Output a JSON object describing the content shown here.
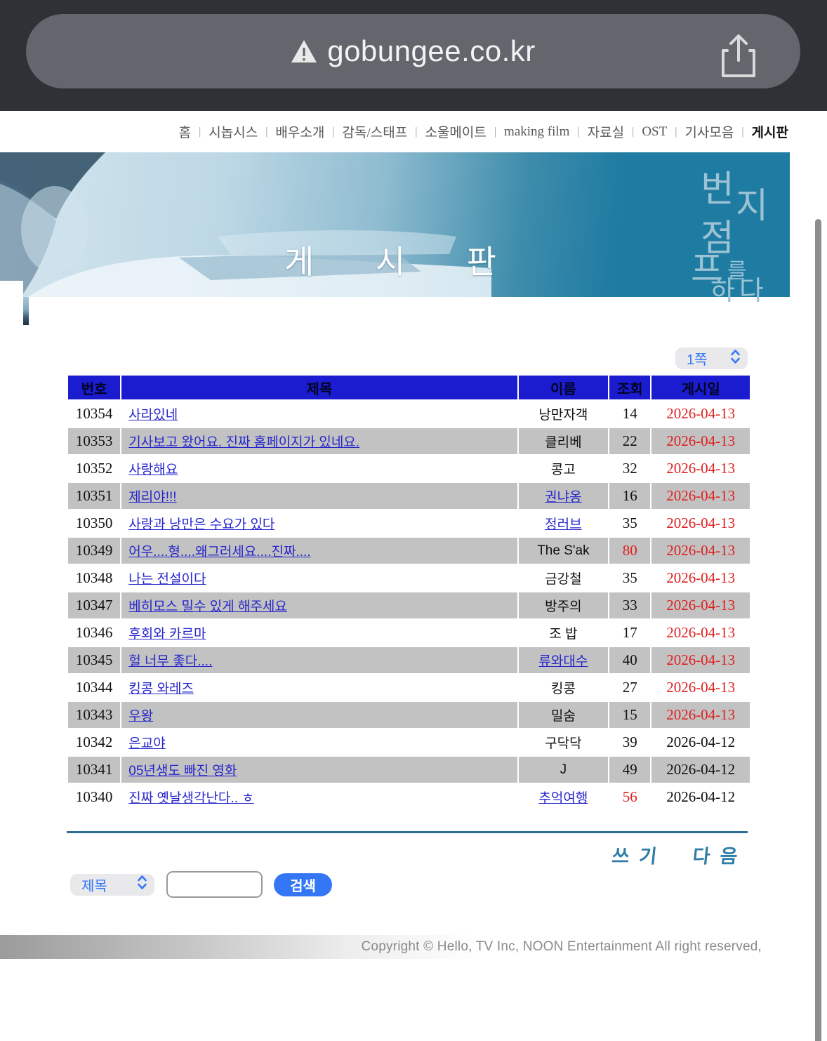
{
  "browser": {
    "url": "gobungee.co.kr",
    "warning_icon": "ssl-warning-triangle",
    "share_icon": "ios-share"
  },
  "nav": {
    "separator": "|",
    "items": [
      "홈",
      "시놉시스",
      "배우소개",
      "감독/스태프",
      "소울메이트",
      "making film",
      "자료실",
      "OST",
      "기사모음",
      "게시판"
    ],
    "active": "게시판"
  },
  "banner": {
    "title": "게 시 판",
    "logo_chars": [
      "번",
      "지",
      "점",
      "프",
      "를",
      "하다"
    ],
    "teal_color": "#1e7ba2"
  },
  "page_select": {
    "value": "1쪽"
  },
  "board": {
    "columns": [
      "번호",
      "제목",
      "이름",
      "조회",
      "게시일"
    ],
    "header_color": "#1b1bd0",
    "alt_row_color": "#c2c2c2",
    "link_color": "#2626cc",
    "highlight_color": "#e01f1f",
    "rows": [
      {
        "no": "10354",
        "title": "사라있네",
        "name": "낭만자객",
        "name_link": false,
        "views": "14",
        "views_red": false,
        "date": "2026-04-13",
        "date_red": true
      },
      {
        "no": "10353",
        "title": "기사보고 왔어요. 진짜 홈페이지가 있네요.",
        "name": "클리베",
        "name_link": false,
        "views": "22",
        "views_red": false,
        "date": "2026-04-13",
        "date_red": true
      },
      {
        "no": "10352",
        "title": "사랑해요",
        "name": "콩고",
        "name_link": false,
        "views": "32",
        "views_red": false,
        "date": "2026-04-13",
        "date_red": true
      },
      {
        "no": "10351",
        "title": "제리야!!!",
        "name": "권냐옹",
        "name_link": true,
        "views": "16",
        "views_red": false,
        "date": "2026-04-13",
        "date_red": true
      },
      {
        "no": "10350",
        "title": "사랑과 낭만은 수요가 있다",
        "name": "정러브",
        "name_link": true,
        "views": "35",
        "views_red": false,
        "date": "2026-04-13",
        "date_red": true
      },
      {
        "no": "10349",
        "title": "어우....형....왜그러세요....진짜....",
        "name": "The S'ak",
        "name_link": false,
        "views": "80",
        "views_red": true,
        "date": "2026-04-13",
        "date_red": true
      },
      {
        "no": "10348",
        "title": "나는 전설이다",
        "name": "금강철",
        "name_link": false,
        "views": "35",
        "views_red": false,
        "date": "2026-04-13",
        "date_red": true
      },
      {
        "no": "10347",
        "title": "베히모스 밀수 있게 해주세요",
        "name": "방주의",
        "name_link": false,
        "views": "33",
        "views_red": false,
        "date": "2026-04-13",
        "date_red": true
      },
      {
        "no": "10346",
        "title": "후회와 카르마",
        "name": "조 밥",
        "name_link": false,
        "views": "17",
        "views_red": false,
        "date": "2026-04-13",
        "date_red": true
      },
      {
        "no": "10345",
        "title": "헐 너무 좋다....",
        "name": "류와대수",
        "name_link": true,
        "views": "40",
        "views_red": false,
        "date": "2026-04-13",
        "date_red": true
      },
      {
        "no": "10344",
        "title": "킹콩 와레즈",
        "name": "킹콩",
        "name_link": false,
        "views": "27",
        "views_red": false,
        "date": "2026-04-13",
        "date_red": true
      },
      {
        "no": "10343",
        "title": "우왕",
        "name": "밀숨",
        "name_link": false,
        "views": "15",
        "views_red": false,
        "date": "2026-04-13",
        "date_red": true
      },
      {
        "no": "10342",
        "title": "은교야",
        "name": "구닥닥",
        "name_link": false,
        "views": "39",
        "views_red": false,
        "date": "2026-04-12",
        "date_red": false
      },
      {
        "no": "10341",
        "title": "05년생도 빠진 영화",
        "name": "J",
        "name_link": false,
        "views": "49",
        "views_red": false,
        "date": "2026-04-12",
        "date_red": false
      },
      {
        "no": "10340",
        "title": "진짜 옛날생각난다.. ㅎ",
        "name": "추억여행",
        "name_link": true,
        "views": "56",
        "views_red": true,
        "date": "2026-04-12",
        "date_red": false
      }
    ]
  },
  "actions": {
    "write": "쓰기",
    "next": "다음"
  },
  "search": {
    "field_select": "제목",
    "input_value": "",
    "button": "검색"
  },
  "footer": {
    "copyright": "Copyright © Hello, TV Inc, NOON Entertainment All right reserved,"
  }
}
